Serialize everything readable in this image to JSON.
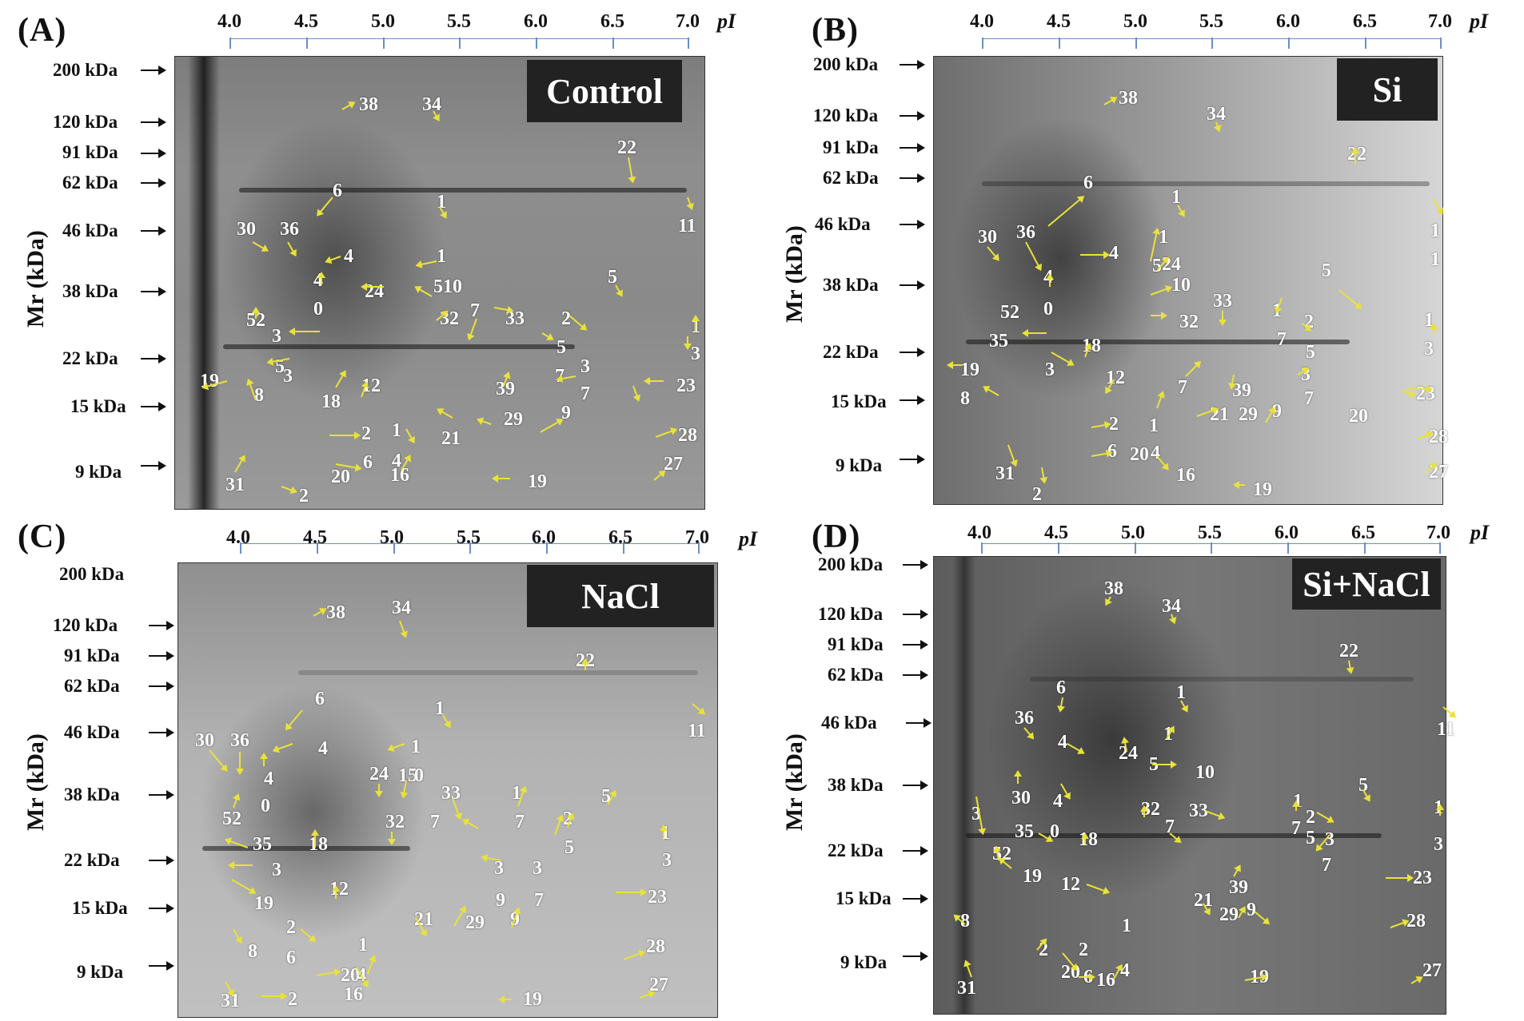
{
  "figure": {
    "ph_ticks": [
      "4.0",
      "4.5",
      "5.0",
      "5.5",
      "6.0",
      "6.5",
      "7.0"
    ],
    "pi_label": "pI",
    "y_title": "Mr (kDa)",
    "colors": {
      "arrow": "#e8e23a",
      "axis": "#6b8fc2",
      "label_box": "#222222"
    }
  },
  "panels": {
    "A": {
      "letter": "(A)",
      "condition": "Control",
      "mw": [
        "200 kDa",
        "120 kDa",
        "91 kDa",
        "62 kDa",
        "46 kDa",
        "38 kDa",
        "22 kDa",
        "15 kDa",
        "9 kDa"
      ],
      "spots": [
        "38",
        "34",
        "22",
        "6",
        "1",
        "11",
        "30",
        "36",
        "4",
        "1",
        "4",
        "24",
        "5",
        "10",
        "5",
        "52",
        "0",
        "32",
        "7",
        "33",
        "2",
        "3",
        "1",
        "5",
        "3",
        "5",
        "3",
        "19",
        "12",
        "7",
        "39",
        "3",
        "8",
        "18",
        "7",
        "23",
        "21",
        "29",
        "9",
        "2",
        "1",
        "28",
        "6",
        "4",
        "16",
        "20",
        "27",
        "31",
        "19",
        "2"
      ]
    },
    "B": {
      "letter": "(B)",
      "condition": "Si",
      "mw": [
        "200 kDa",
        "120 kDa",
        "91 kDa",
        "62 kDa",
        "46 kDa",
        "38 kDa",
        "22 kDa",
        "15 kDa",
        "9 kDa"
      ],
      "spots": [
        "38",
        "34",
        "22",
        "6",
        "1",
        "1",
        "30",
        "36",
        "1",
        "4",
        "1",
        "5",
        "24",
        "4",
        "10",
        "33",
        "5",
        "52",
        "0",
        "32",
        "1",
        "2",
        "7",
        "1",
        "35",
        "18",
        "5",
        "3",
        "19",
        "3",
        "12",
        "3",
        "7",
        "39",
        "8",
        "7",
        "23",
        "21",
        "29",
        "9",
        "20",
        "2",
        "1",
        "28",
        "6",
        "20",
        "4",
        "16",
        "27",
        "31",
        "2",
        "19"
      ]
    },
    "C": {
      "letter": "(C)",
      "condition": "NaCl",
      "mw": [
        "200 kDa",
        "120 kDa",
        "91 kDa",
        "62 kDa",
        "46 kDa",
        "38 kDa",
        "22 kDa",
        "15 kDa",
        "9 kDa"
      ],
      "spots": [
        "38",
        "34",
        "22",
        "6",
        "1",
        "11",
        "30",
        "36",
        "4",
        "1",
        "4",
        "24",
        "1",
        "5",
        "0",
        "0",
        "33",
        "1",
        "5",
        "52",
        "32",
        "7",
        "7",
        "2",
        "1",
        "35",
        "18",
        "5",
        "3",
        "3",
        "3",
        "3",
        "19",
        "12",
        "9",
        "7",
        "23",
        "21",
        "29",
        "9",
        "2",
        "8",
        "1",
        "28",
        "6",
        "20",
        "4",
        "16",
        "27",
        "31",
        "2",
        "19"
      ]
    },
    "D": {
      "letter": "(D)",
      "condition": "Si+NaCl",
      "mw": [
        "200 kDa",
        "120 kDa",
        "91 kDa",
        "62 kDa",
        "46 kDa",
        "38 kDa",
        "22 kDa",
        "15 kDa",
        "9 kDa"
      ],
      "spots": [
        "38",
        "34",
        "22",
        "6",
        "1",
        "11",
        "36",
        "4",
        "1",
        "24",
        "5",
        "10",
        "5",
        "30",
        "4",
        "32",
        "33",
        "1",
        "2",
        "1",
        "3",
        "35",
        "0",
        "18",
        "7",
        "7",
        "5",
        "3",
        "52",
        "19",
        "3",
        "12",
        "7",
        "39",
        "23",
        "21",
        "29",
        "9",
        "8",
        "28",
        "2",
        "2",
        "1",
        "20",
        "6",
        "16",
        "4",
        "19",
        "27",
        "31"
      ]
    }
  }
}
